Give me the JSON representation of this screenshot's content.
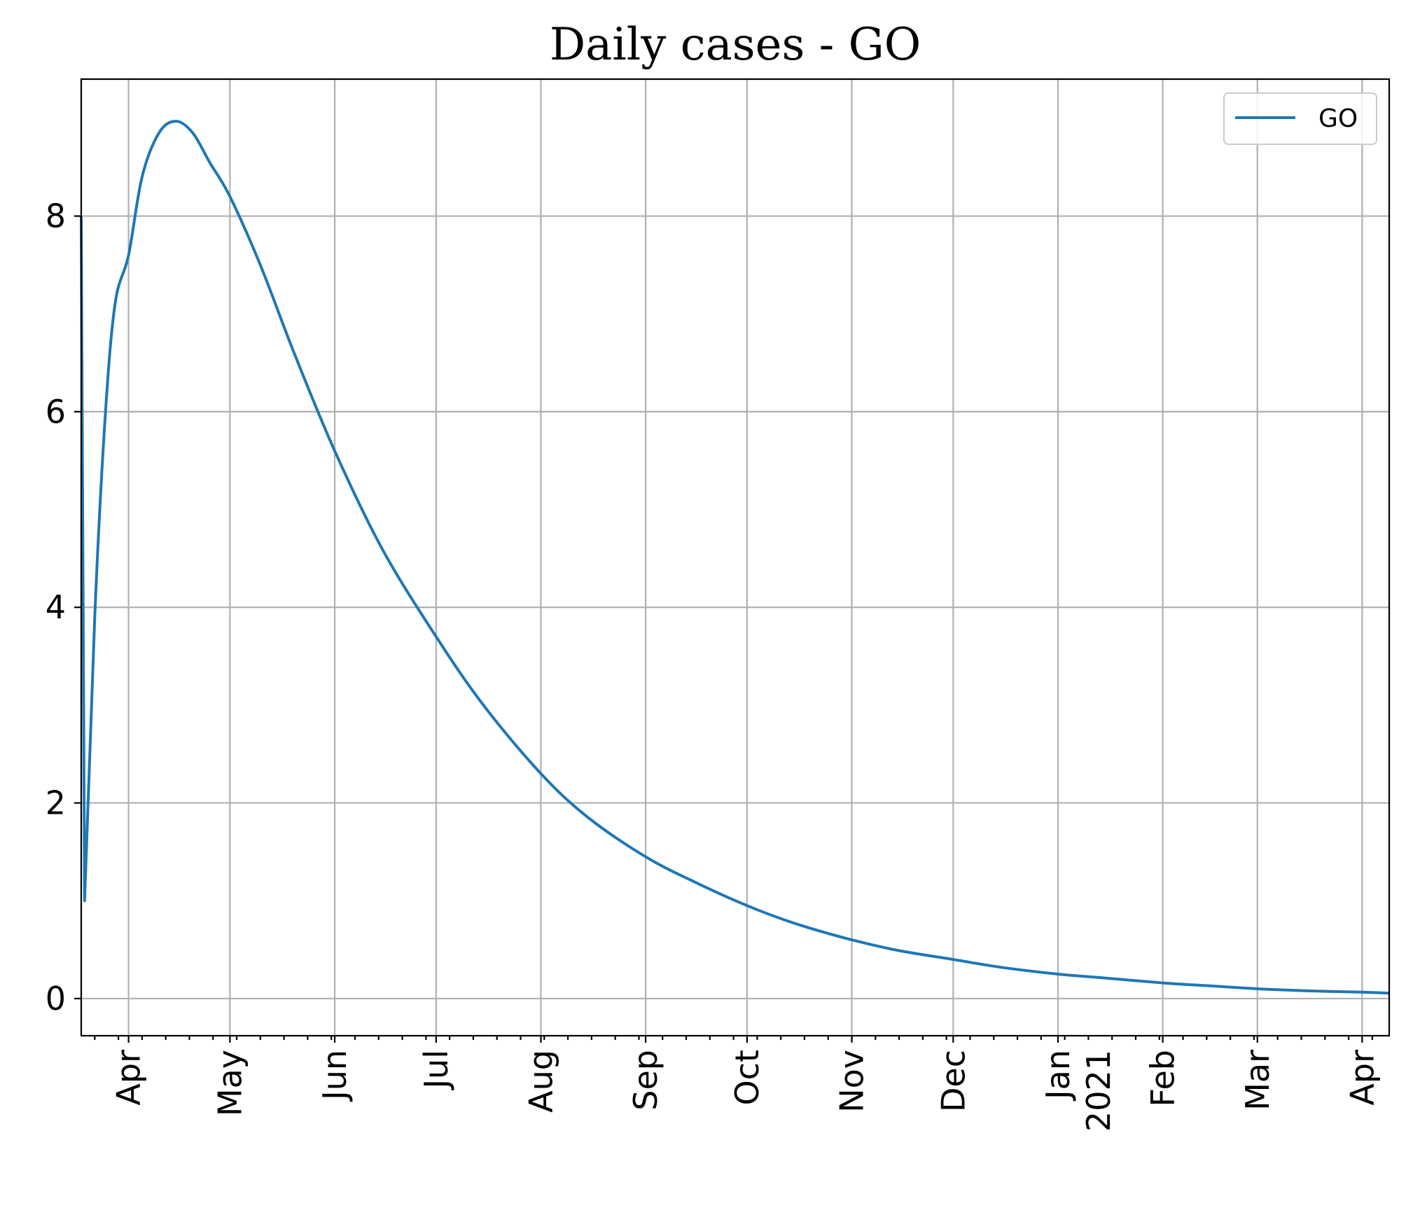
{
  "chart_data": {
    "type": "line",
    "title": "Daily cases - GO",
    "xlabel": "",
    "ylabel": "",
    "x_range": [
      "2020-03-18",
      "2021-04-09"
    ],
    "ylim": [
      -0.38,
      9.4
    ],
    "yticks": [
      0,
      2,
      4,
      6,
      8
    ],
    "xticks": [
      {
        "date": "2020-04-01",
        "label": "Apr",
        "label2": ""
      },
      {
        "date": "2020-05-01",
        "label": "May",
        "label2": ""
      },
      {
        "date": "2020-06-01",
        "label": "Jun",
        "label2": ""
      },
      {
        "date": "2020-07-01",
        "label": "Jul",
        "label2": ""
      },
      {
        "date": "2020-08-01",
        "label": "Aug",
        "label2": ""
      },
      {
        "date": "2020-09-01",
        "label": "Sep",
        "label2": ""
      },
      {
        "date": "2020-10-01",
        "label": "Oct",
        "label2": ""
      },
      {
        "date": "2020-11-01",
        "label": "Nov",
        "label2": ""
      },
      {
        "date": "2020-12-01",
        "label": "Dec",
        "label2": ""
      },
      {
        "date": "2021-01-01",
        "label": "Jan",
        "label2": "2021"
      },
      {
        "date": "2021-02-01",
        "label": "Feb",
        "label2": ""
      },
      {
        "date": "2021-03-01",
        "label": "Mar",
        "label2": ""
      },
      {
        "date": "2021-04-01",
        "label": "Apr",
        "label2": ""
      }
    ],
    "minor_tick_interval_days": 7,
    "grid": true,
    "legend": {
      "position": "top-right",
      "entries": [
        "GO"
      ]
    },
    "series": [
      {
        "name": "GO",
        "color": "#1f77b4",
        "points": [
          [
            "2020-03-18",
            8.0
          ],
          [
            "2020-03-19",
            1.0
          ],
          [
            "2020-03-22",
            3.9
          ],
          [
            "2020-03-25",
            5.9
          ],
          [
            "2020-03-28",
            7.1
          ],
          [
            "2020-04-01",
            7.6
          ],
          [
            "2020-04-05",
            8.4
          ],
          [
            "2020-04-10",
            8.85
          ],
          [
            "2020-04-15",
            8.97
          ],
          [
            "2020-04-20",
            8.85
          ],
          [
            "2020-04-25",
            8.55
          ],
          [
            "2020-05-01",
            8.2
          ],
          [
            "2020-05-10",
            7.5
          ],
          [
            "2020-05-20",
            6.6
          ],
          [
            "2020-06-01",
            5.6
          ],
          [
            "2020-06-15",
            4.6
          ],
          [
            "2020-07-01",
            3.7
          ],
          [
            "2020-07-15",
            3.0
          ],
          [
            "2020-08-01",
            2.3
          ],
          [
            "2020-08-15",
            1.85
          ],
          [
            "2020-09-01",
            1.45
          ],
          [
            "2020-09-15",
            1.2
          ],
          [
            "2020-10-01",
            0.95
          ],
          [
            "2020-10-15",
            0.77
          ],
          [
            "2020-11-01",
            0.6
          ],
          [
            "2020-11-15",
            0.49
          ],
          [
            "2020-12-01",
            0.4
          ],
          [
            "2020-12-15",
            0.32
          ],
          [
            "2021-01-01",
            0.25
          ],
          [
            "2021-01-15",
            0.21
          ],
          [
            "2021-02-01",
            0.16
          ],
          [
            "2021-02-15",
            0.13
          ],
          [
            "2021-03-01",
            0.1
          ],
          [
            "2021-03-15",
            0.08
          ],
          [
            "2021-04-01",
            0.065
          ],
          [
            "2021-04-09",
            0.055
          ]
        ]
      }
    ]
  }
}
